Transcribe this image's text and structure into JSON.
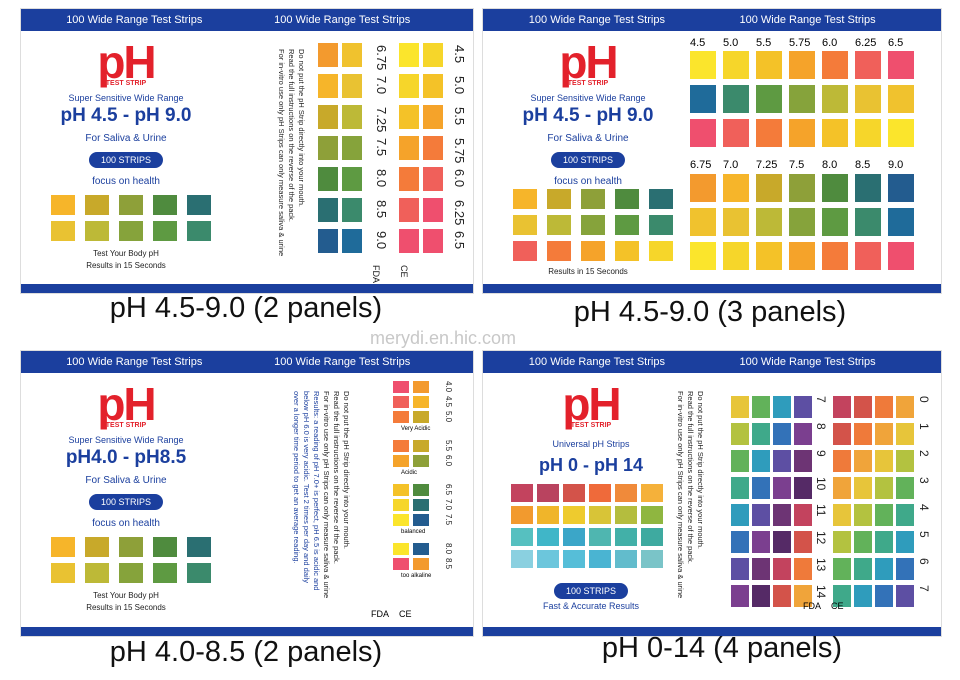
{
  "watermark": "merydi.en.hic.com",
  "panels": [
    {
      "caption": "pH 4.5-9.0 (2 panels)",
      "header": [
        "100 Wide Range Test Strips",
        "100 Wide Range Test Strips"
      ],
      "logo": "pH",
      "logo_sub": "TEST STRIP",
      "tagline": "Super Sensitive Wide Range",
      "range": "pH 4.5 - pH 9.0",
      "use": "For Saliva & Urine",
      "badge": "100 STRIPS",
      "slogan": "focus on health",
      "footer": [
        "Test Your Body pH",
        "Results in 15 Seconds"
      ],
      "notes": [
        "Do not put the pH Strip directly into your mouth.",
        "Read the full instructions on the reverse of the pack.",
        "For in-vitro use only pH Strips can only measure saliva & urine"
      ],
      "scale_a": [
        "6.75",
        "7.0",
        "7.25",
        "7.5",
        "8.0",
        "8.5",
        "9.0"
      ],
      "scale_b": [
        "4.5",
        "5.0",
        "5.5",
        "5.75",
        "6.0",
        "6.25",
        "6.5"
      ],
      "marks": [
        "FDA",
        "CE"
      ]
    },
    {
      "caption": "pH 4.5-9.0 (3 panels)",
      "header": [
        "100 Wide Range Test Strips",
        "100 Wide Range Test Strips"
      ],
      "logo": "pH",
      "logo_sub": "TEST STRIP",
      "tagline": "Super Sensitive Wide Range",
      "range": "pH 4.5 - pH 9.0",
      "use": "For Saliva & Urine",
      "badge": "100 STRIPS",
      "slogan": "focus on health",
      "footer": [
        "Results in 15 Seconds"
      ],
      "scale_a": [
        "4.5",
        "5.0",
        "5.5",
        "5.75",
        "6.0",
        "6.25",
        "6.5"
      ],
      "scale_b": [
        "6.75",
        "7.0",
        "7.25",
        "7.5",
        "8.0",
        "8.5",
        "9.0"
      ]
    },
    {
      "caption": "pH 4.0-8.5 (2 panels)",
      "header": [
        "100 Wide Range Test Strips",
        "100 Wide Range Test Strips"
      ],
      "logo": "pH",
      "logo_sub": "TEST STRIP",
      "tagline": "Super Sensitive Wide Range",
      "range": "pH4.0 - pH8.5",
      "use": "For Saliva & Urine",
      "badge": "100 STRIPS",
      "slogan": "focus on health",
      "footer": [
        "Test Your Body pH",
        "Results in 15 Seconds"
      ],
      "notes": [
        "Do not put the pH Strip directly into your mouth.",
        "Read the full instructions on the reverse of the pack.",
        "For in-vitro use only pH Strips can only measure saliva & urine",
        "Results: a reading of pH 7.0+ is perfect, pH 6.5 is acidic and",
        "below pH 6.0 is very acidic. Test 2 times per day and daily",
        "over a longer time period to get an average reading."
      ],
      "groups": [
        {
          "values": [
            "4.0",
            "4.5",
            "5.0"
          ],
          "label": "Very Acidic"
        },
        {
          "values": [
            "5.5",
            "6.0"
          ],
          "label": "Acidic"
        },
        {
          "values": [
            "6.5",
            "7.0",
            "7.5"
          ],
          "label": "balanced"
        },
        {
          "values": [
            "8.0",
            "8.5"
          ],
          "label": "too alkaline"
        }
      ],
      "marks": [
        "FDA",
        "CE"
      ]
    },
    {
      "caption": "pH 0-14 (4 panels)",
      "header": [
        "100 Wide Range Test Strips",
        "100 Wide Range Test Strips"
      ],
      "logo": "pH",
      "logo_sub": "TEST STRIP",
      "tagline": "Universal pH Strips",
      "range": "pH 0 - pH 14",
      "badge": "100 STRIPS",
      "footer": [
        "Fast & Accurate Results"
      ],
      "notes": [
        "Do not put the pH Strip directly into your mouth.",
        "Read the full instructions on the reverse of the pack.",
        "For in-vitro use only pH Strips can only measure saliva & urine"
      ],
      "scale_a": [
        "7",
        "8",
        "9",
        "10",
        "11",
        "12",
        "13",
        "14"
      ],
      "scale_b": [
        "0",
        "1",
        "2",
        "3",
        "4",
        "5",
        "6",
        "7"
      ],
      "marks": [
        "FDA",
        "CE"
      ]
    }
  ]
}
